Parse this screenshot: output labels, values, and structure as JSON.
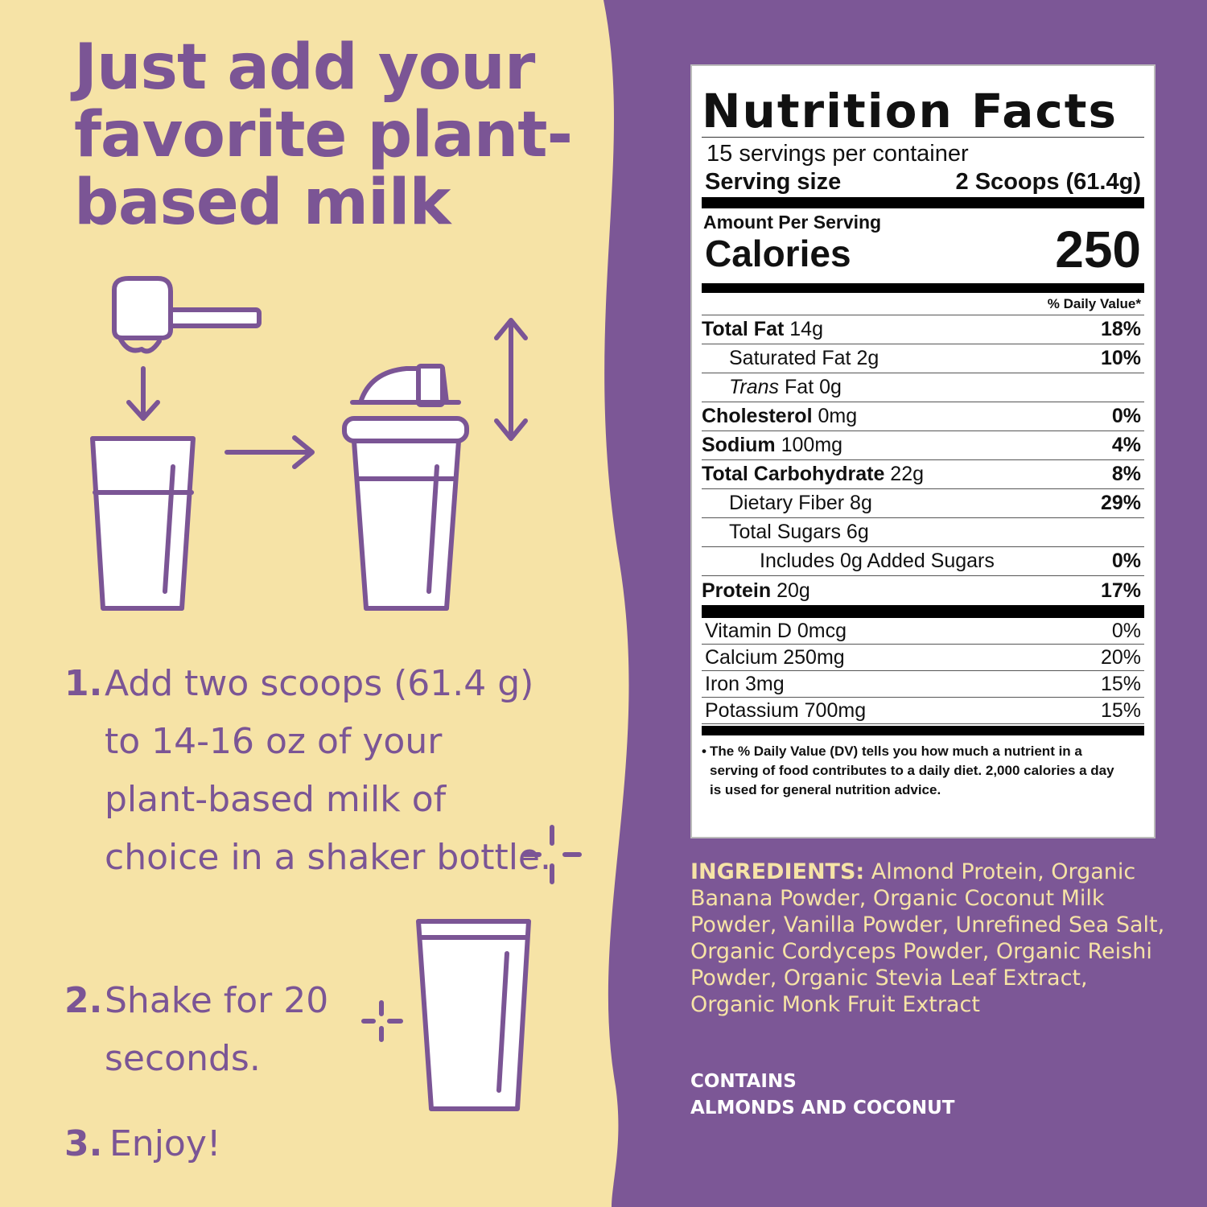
{
  "colors": {
    "cream": "#f6e3a6",
    "purple": "#7c5796",
    "text_purple": "#7b5595"
  },
  "headline": "Just add your favorite plant-based milk",
  "steps": [
    {
      "num": "1.",
      "text": "Add two scoops (61.4 g) to 14-16 oz of your plant-based milk of choice in a shaker bottle."
    },
    {
      "num": "2.",
      "text": "Shake for 20 seconds."
    },
    {
      "num": "3.",
      "text": "Enjoy!"
    }
  ],
  "icons": [
    "scoop-icon",
    "arrow-down-icon",
    "glass-icon",
    "arrow-right-icon",
    "shaker-bottle-icon",
    "shake-arrow-icon",
    "sparkle-icon",
    "sparkle-icon",
    "glass-icon"
  ],
  "nutrition": {
    "title": "Nutrition Facts",
    "servings": "15 servings per container",
    "serving_size_label": "Serving size",
    "serving_size_value": "2 Scoops (61.4g)",
    "amount_per_serving": "Amount Per Serving",
    "calories_label": "Calories",
    "calories_value": "250",
    "dv_header": "% Daily Value*",
    "rows": [
      {
        "name": "Total Fat",
        "amount": "14g",
        "dv": "18%",
        "bold": true,
        "indent": 0
      },
      {
        "name": "Saturated Fat",
        "amount": "2g",
        "dv": "10%",
        "bold": false,
        "indent": 1
      },
      {
        "name": "Trans",
        "amount": "Fat 0g",
        "dv": "",
        "bold": false,
        "indent": 1
      },
      {
        "name": "Cholesterol",
        "amount": "0mg",
        "dv": "0%",
        "bold": true,
        "indent": 0
      },
      {
        "name": "Sodium",
        "amount": "100mg",
        "dv": "4%",
        "bold": true,
        "indent": 0
      },
      {
        "name": "Total Carbohydrate",
        "amount": "22g",
        "dv": "8%",
        "bold": true,
        "indent": 0
      },
      {
        "name": "Dietary Fiber",
        "amount": "8g",
        "dv": "29%",
        "bold": false,
        "indent": 1
      },
      {
        "name": "Total Sugars",
        "amount": "6g",
        "dv": "",
        "bold": false,
        "indent": 1
      },
      {
        "name": "Includes 0g Added Sugars",
        "amount": "",
        "dv": "0%",
        "bold": false,
        "indent": 2
      },
      {
        "name": "Protein",
        "amount": "20g",
        "dv": "17%",
        "bold": true,
        "indent": 0
      }
    ],
    "vitamins": [
      {
        "name": "Vitamin D 0mcg",
        "dv": "0%"
      },
      {
        "name": "Calcium 250mg",
        "dv": "20%"
      },
      {
        "name": "Iron 3mg",
        "dv": "15%"
      },
      {
        "name": "Potassium 700mg",
        "dv": "15%"
      }
    ],
    "footnote": "The % Daily Value (DV) tells you how much a nutrient in a serving of food contributes to a daily diet. 2,000 calories a day is used for general nutrition advice."
  },
  "ingredients": {
    "label": "INGREDIENTS:",
    "text": "Almond Protein, Organic Banana Powder, Organic Coconut Milk Powder, Vanilla Powder, Unrefined Sea Salt, Organic Cordyceps Powder, Organic Reishi Powder, Organic Stevia Leaf Extract, Organic Monk Fruit Extract"
  },
  "contains": {
    "label": "CONTAINS",
    "text": "ALMONDS AND COCONUT"
  }
}
